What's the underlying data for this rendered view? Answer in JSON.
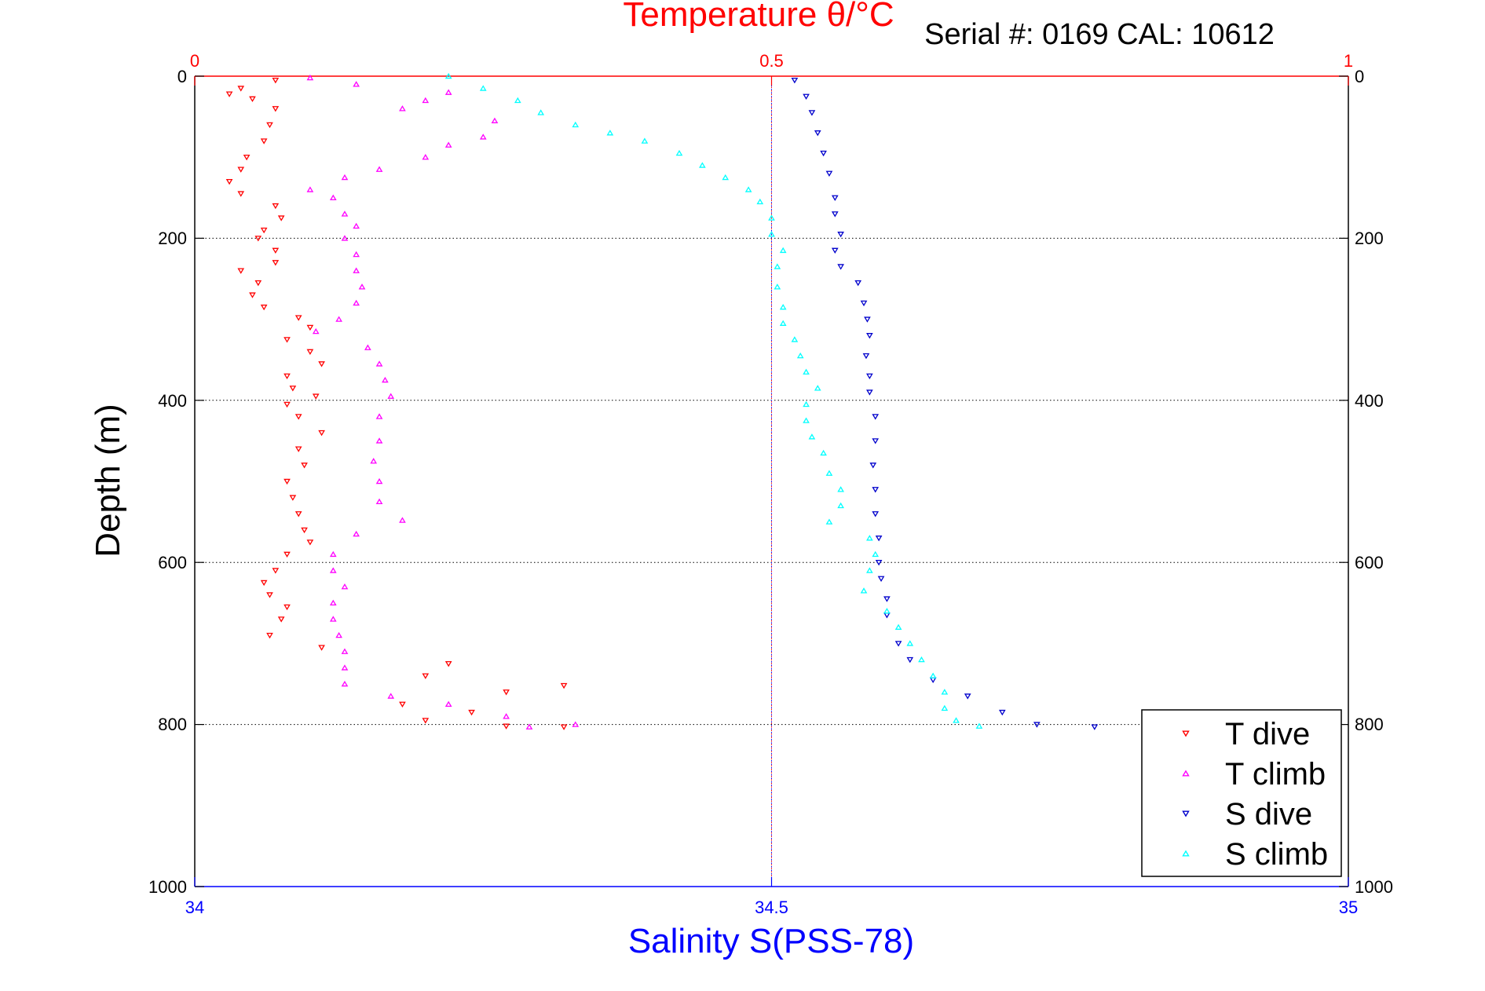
{
  "header": {
    "top_title": "Temperature θ/°C",
    "serial_text": "Serial #: 0169 CAL: 10612"
  },
  "axes": {
    "x_bottom_label": "Salinity S(PSS-78)",
    "y_label": "Depth (m)"
  },
  "legend": {
    "placement": "bottom-right",
    "items": [
      {
        "label": "T dive",
        "color": "#ff0000",
        "marker": "down-triangle"
      },
      {
        "label": "T climb",
        "color": "#ff00ff",
        "marker": "up-triangle"
      },
      {
        "label": "S dive",
        "color": "#0000cc",
        "marker": "down-triangle"
      },
      {
        "label": "S climb",
        "color": "#00ffff",
        "marker": "up-triangle"
      }
    ]
  },
  "chart_data": {
    "type": "scatter",
    "title": "Temperature θ/°C",
    "subtitle": "Serial #: 0169 CAL: 10612",
    "xlabel": "Salinity S(PSS-78)",
    "ylabel": "Depth (m)",
    "x_top": {
      "range": [
        0,
        1
      ],
      "ticks": [
        0,
        0.5,
        1
      ],
      "tick_labels": [
        "0",
        "0.5",
        "1"
      ],
      "color": "#ff0000"
    },
    "x_bottom": {
      "range": [
        34,
        35
      ],
      "ticks": [
        34,
        34.5,
        35
      ],
      "tick_labels": [
        "34",
        "34.5",
        "35"
      ],
      "color": "#0000ff"
    },
    "y": {
      "range": [
        0,
        1000
      ],
      "reversed": true,
      "ticks": [
        0,
        200,
        400,
        600,
        800,
        1000
      ],
      "tick_labels": [
        "0",
        "200",
        "400",
        "600",
        "800",
        "1000"
      ]
    },
    "grid": true,
    "legend_placement": "bottom-right",
    "series": [
      {
        "name": "T dive",
        "axis": "top",
        "color": "#ff0000",
        "marker": "down-triangle",
        "points": [
          [
            0.07,
            5
          ],
          [
            0.04,
            15
          ],
          [
            0.03,
            22
          ],
          [
            0.05,
            28
          ],
          [
            0.07,
            40
          ],
          [
            0.065,
            60
          ],
          [
            0.06,
            80
          ],
          [
            0.045,
            100
          ],
          [
            0.04,
            115
          ],
          [
            0.03,
            130
          ],
          [
            0.04,
            145
          ],
          [
            0.07,
            160
          ],
          [
            0.075,
            175
          ],
          [
            0.06,
            190
          ],
          [
            0.055,
            200
          ],
          [
            0.07,
            215
          ],
          [
            0.07,
            230
          ],
          [
            0.04,
            240
          ],
          [
            0.055,
            255
          ],
          [
            0.05,
            270
          ],
          [
            0.06,
            285
          ],
          [
            0.09,
            298
          ],
          [
            0.1,
            310
          ],
          [
            0.08,
            325
          ],
          [
            0.1,
            340
          ],
          [
            0.11,
            355
          ],
          [
            0.08,
            370
          ],
          [
            0.085,
            385
          ],
          [
            0.105,
            395
          ],
          [
            0.08,
            405
          ],
          [
            0.09,
            420
          ],
          [
            0.11,
            440
          ],
          [
            0.09,
            460
          ],
          [
            0.095,
            480
          ],
          [
            0.08,
            500
          ],
          [
            0.085,
            520
          ],
          [
            0.09,
            540
          ],
          [
            0.095,
            560
          ],
          [
            0.1,
            575
          ],
          [
            0.08,
            590
          ],
          [
            0.07,
            610
          ],
          [
            0.06,
            625
          ],
          [
            0.065,
            640
          ],
          [
            0.08,
            655
          ],
          [
            0.075,
            670
          ],
          [
            0.065,
            690
          ],
          [
            0.11,
            705
          ],
          [
            0.22,
            725
          ],
          [
            0.2,
            740
          ],
          [
            0.32,
            752
          ],
          [
            0.27,
            760
          ],
          [
            0.18,
            775
          ],
          [
            0.24,
            785
          ],
          [
            0.2,
            795
          ],
          [
            0.27,
            802
          ],
          [
            0.32,
            803
          ]
        ]
      },
      {
        "name": "T climb",
        "axis": "top",
        "color": "#ff00ff",
        "marker": "up-triangle",
        "points": [
          [
            0.1,
            2
          ],
          [
            0.14,
            10
          ],
          [
            0.22,
            20
          ],
          [
            0.2,
            30
          ],
          [
            0.18,
            40
          ],
          [
            0.26,
            55
          ],
          [
            0.25,
            75
          ],
          [
            0.22,
            85
          ],
          [
            0.2,
            100
          ],
          [
            0.16,
            115
          ],
          [
            0.13,
            125
          ],
          [
            0.1,
            140
          ],
          [
            0.12,
            150
          ],
          [
            0.13,
            170
          ],
          [
            0.14,
            185
          ],
          [
            0.13,
            200
          ],
          [
            0.14,
            220
          ],
          [
            0.14,
            240
          ],
          [
            0.145,
            260
          ],
          [
            0.14,
            280
          ],
          [
            0.125,
            300
          ],
          [
            0.105,
            315
          ],
          [
            0.15,
            335
          ],
          [
            0.16,
            355
          ],
          [
            0.165,
            375
          ],
          [
            0.17,
            395
          ],
          [
            0.16,
            420
          ],
          [
            0.16,
            450
          ],
          [
            0.155,
            475
          ],
          [
            0.16,
            500
          ],
          [
            0.16,
            525
          ],
          [
            0.18,
            548
          ],
          [
            0.14,
            565
          ],
          [
            0.12,
            590
          ],
          [
            0.12,
            610
          ],
          [
            0.13,
            630
          ],
          [
            0.12,
            650
          ],
          [
            0.12,
            670
          ],
          [
            0.125,
            690
          ],
          [
            0.13,
            710
          ],
          [
            0.13,
            730
          ],
          [
            0.13,
            750
          ],
          [
            0.17,
            765
          ],
          [
            0.22,
            775
          ],
          [
            0.27,
            790
          ],
          [
            0.33,
            800
          ],
          [
            0.29,
            803
          ]
        ]
      },
      {
        "name": "S dive",
        "axis": "bottom",
        "color": "#0000cc",
        "marker": "down-triangle",
        "points": [
          [
            34.52,
            5
          ],
          [
            34.53,
            25
          ],
          [
            34.535,
            45
          ],
          [
            34.54,
            70
          ],
          [
            34.545,
            95
          ],
          [
            34.55,
            120
          ],
          [
            34.555,
            150
          ],
          [
            34.555,
            170
          ],
          [
            34.56,
            195
          ],
          [
            34.555,
            215
          ],
          [
            34.56,
            235
          ],
          [
            34.575,
            255
          ],
          [
            34.58,
            280
          ],
          [
            34.583,
            300
          ],
          [
            34.585,
            320
          ],
          [
            34.582,
            345
          ],
          [
            34.585,
            370
          ],
          [
            34.585,
            390
          ],
          [
            34.59,
            420
          ],
          [
            34.59,
            450
          ],
          [
            34.588,
            480
          ],
          [
            34.59,
            510
          ],
          [
            34.59,
            540
          ],
          [
            34.593,
            570
          ],
          [
            34.593,
            600
          ],
          [
            34.595,
            620
          ],
          [
            34.6,
            645
          ],
          [
            34.6,
            665
          ],
          [
            34.61,
            700
          ],
          [
            34.62,
            720
          ],
          [
            34.64,
            745
          ],
          [
            34.67,
            765
          ],
          [
            34.7,
            785
          ],
          [
            34.73,
            800
          ],
          [
            34.78,
            803
          ]
        ]
      },
      {
        "name": "S climb",
        "axis": "bottom",
        "color": "#00ffff",
        "marker": "up-triangle",
        "points": [
          [
            34.22,
            0
          ],
          [
            34.25,
            15
          ],
          [
            34.28,
            30
          ],
          [
            34.3,
            45
          ],
          [
            34.33,
            60
          ],
          [
            34.36,
            70
          ],
          [
            34.39,
            80
          ],
          [
            34.42,
            95
          ],
          [
            34.44,
            110
          ],
          [
            34.46,
            125
          ],
          [
            34.48,
            140
          ],
          [
            34.49,
            155
          ],
          [
            34.5,
            175
          ],
          [
            34.5,
            195
          ],
          [
            34.51,
            215
          ],
          [
            34.505,
            235
          ],
          [
            34.505,
            260
          ],
          [
            34.51,
            285
          ],
          [
            34.51,
            305
          ],
          [
            34.52,
            325
          ],
          [
            34.525,
            345
          ],
          [
            34.53,
            365
          ],
          [
            34.54,
            385
          ],
          [
            34.53,
            405
          ],
          [
            34.53,
            425
          ],
          [
            34.535,
            445
          ],
          [
            34.545,
            465
          ],
          [
            34.55,
            490
          ],
          [
            34.56,
            510
          ],
          [
            34.56,
            530
          ],
          [
            34.55,
            550
          ],
          [
            34.585,
            570
          ],
          [
            34.59,
            590
          ],
          [
            34.585,
            610
          ],
          [
            34.58,
            635
          ],
          [
            34.6,
            660
          ],
          [
            34.61,
            680
          ],
          [
            34.62,
            700
          ],
          [
            34.63,
            720
          ],
          [
            34.64,
            740
          ],
          [
            34.65,
            760
          ],
          [
            34.65,
            780
          ],
          [
            34.66,
            795
          ],
          [
            34.68,
            802
          ]
        ]
      }
    ]
  }
}
